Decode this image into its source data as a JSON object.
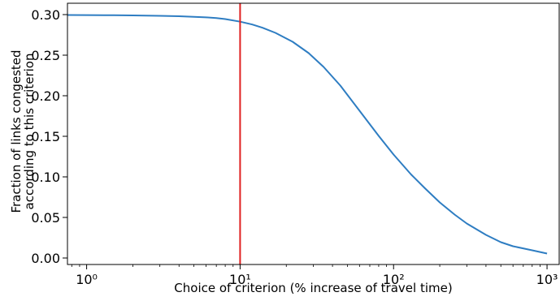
{
  "colors": {
    "line": "#2e7dc2",
    "reference_line": "#e02020",
    "axes": "#000000",
    "background": "#ffffff"
  },
  "chart_data": {
    "type": "line",
    "title": "",
    "xlabel": "Choice of criterion (% increase of travel time)",
    "ylabel": "Fraction of links congested\naccording to this criterion",
    "xscale": "log",
    "xlim": [
      0.75,
      1200
    ],
    "ylim": [
      -0.008,
      0.314
    ],
    "grid": false,
    "legend": "none",
    "x_ticks": [
      {
        "value": 1,
        "label": "10⁰"
      },
      {
        "value": 10,
        "label": "10¹"
      },
      {
        "value": 100,
        "label": "10²"
      },
      {
        "value": 1000,
        "label": "10³"
      }
    ],
    "y_ticks": [
      {
        "value": 0.0,
        "label": "0.00"
      },
      {
        "value": 0.05,
        "label": "0.05"
      },
      {
        "value": 0.1,
        "label": "0.10"
      },
      {
        "value": 0.15,
        "label": "0.15"
      },
      {
        "value": 0.2,
        "label": "0.20"
      },
      {
        "value": 0.25,
        "label": "0.25"
      },
      {
        "value": 0.3,
        "label": "0.30"
      }
    ],
    "reference_line": {
      "x": 10
    },
    "series": [
      {
        "x": [
          0.75,
          1,
          1.5,
          2,
          3,
          4,
          5,
          6,
          7,
          8,
          10,
          12,
          14,
          17,
          22,
          28,
          35,
          45,
          60,
          80,
          100,
          130,
          160,
          200,
          250,
          300,
          400,
          500,
          600,
          800,
          1000
        ],
        "y": [
          0.2995,
          0.2994,
          0.2992,
          0.299,
          0.2985,
          0.298,
          0.2973,
          0.2966,
          0.2957,
          0.2945,
          0.2913,
          0.2878,
          0.2838,
          0.2775,
          0.2665,
          0.2525,
          0.2355,
          0.2125,
          0.1815,
          0.1505,
          0.1275,
          0.103,
          0.086,
          0.0685,
          0.0535,
          0.0425,
          0.0285,
          0.0195,
          0.0145,
          0.0095,
          0.0055
        ]
      }
    ]
  }
}
